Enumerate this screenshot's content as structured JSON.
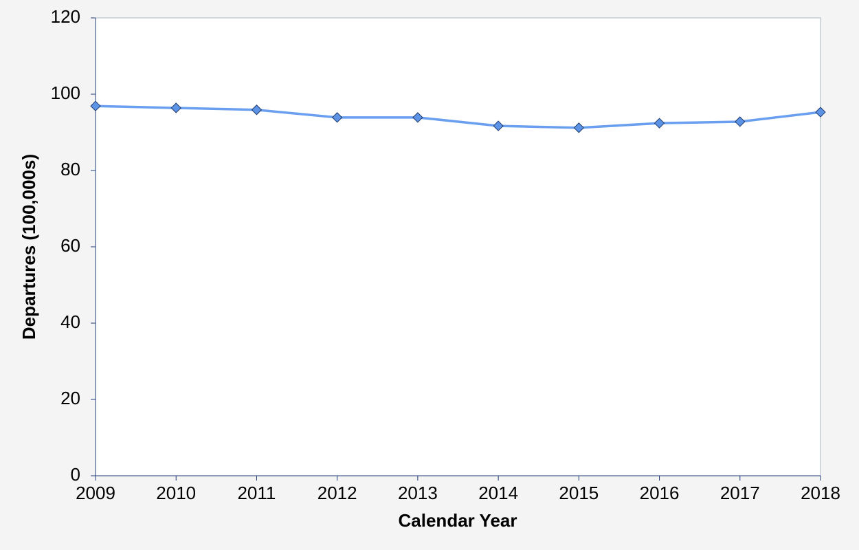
{
  "chart_data": {
    "type": "line",
    "x_label": "Calendar Year",
    "y_label": "Departures (100,000s)",
    "x": [
      2009,
      2010,
      2011,
      2012,
      2013,
      2014,
      2015,
      2016,
      2017,
      2018
    ],
    "values": [
      96.9,
      96.4,
      95.9,
      93.9,
      93.9,
      91.7,
      91.2,
      92.4,
      92.8,
      95.3
    ],
    "color": "#6a9ff0",
    "marker_color": "#5d93e6",
    "xlim": [
      2009,
      2018
    ],
    "xticks": [
      2009,
      2010,
      2011,
      2012,
      2013,
      2014,
      2015,
      2016,
      2017,
      2018
    ],
    "ylim": [
      0,
      120
    ],
    "yticks": [
      0,
      20,
      40,
      60,
      80,
      100,
      120
    ],
    "grid": false
  }
}
